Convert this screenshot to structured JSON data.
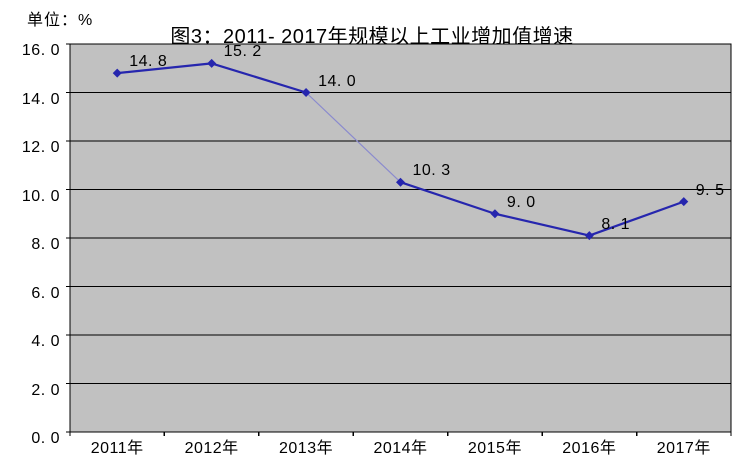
{
  "page": {
    "background": "#ffffff"
  },
  "chart_data": {
    "type": "line",
    "title": "图3：2011- 2017年规模以上工业增加值增速",
    "unit_label": "单位：%",
    "categories": [
      "2011年",
      "2012年",
      "2013年",
      "2014年",
      "2015年",
      "2016年",
      "2017年"
    ],
    "values": [
      14.8,
      15.2,
      14.0,
      10.3,
      9.0,
      8.1,
      9.5
    ],
    "point_labels": [
      "14. 8",
      "15. 2",
      "14. 0",
      "10. 3",
      "9. 0",
      "8. 1",
      "9. 5"
    ],
    "y_ticks": [
      {
        "value": 0,
        "label": "0. 0"
      },
      {
        "value": 2,
        "label": "2. 0"
      },
      {
        "value": 4,
        "label": "4. 0"
      },
      {
        "value": 6,
        "label": "6. 0"
      },
      {
        "value": 8,
        "label": "8. 0"
      },
      {
        "value": 10,
        "label": "10. 0"
      },
      {
        "value": 12,
        "label": "12. 0"
      },
      {
        "value": 14,
        "label": "14. 0"
      },
      {
        "value": 16,
        "label": "16. 0"
      }
    ],
    "ylim": [
      0,
      16
    ],
    "grid": true,
    "legend": "none",
    "marker": "diamond",
    "colors": {
      "plot_bg": "#c1c1c1",
      "grid": "#000000",
      "line": "#2626ae",
      "faded_segment": "#8a8ace",
      "text": "#000000"
    }
  }
}
